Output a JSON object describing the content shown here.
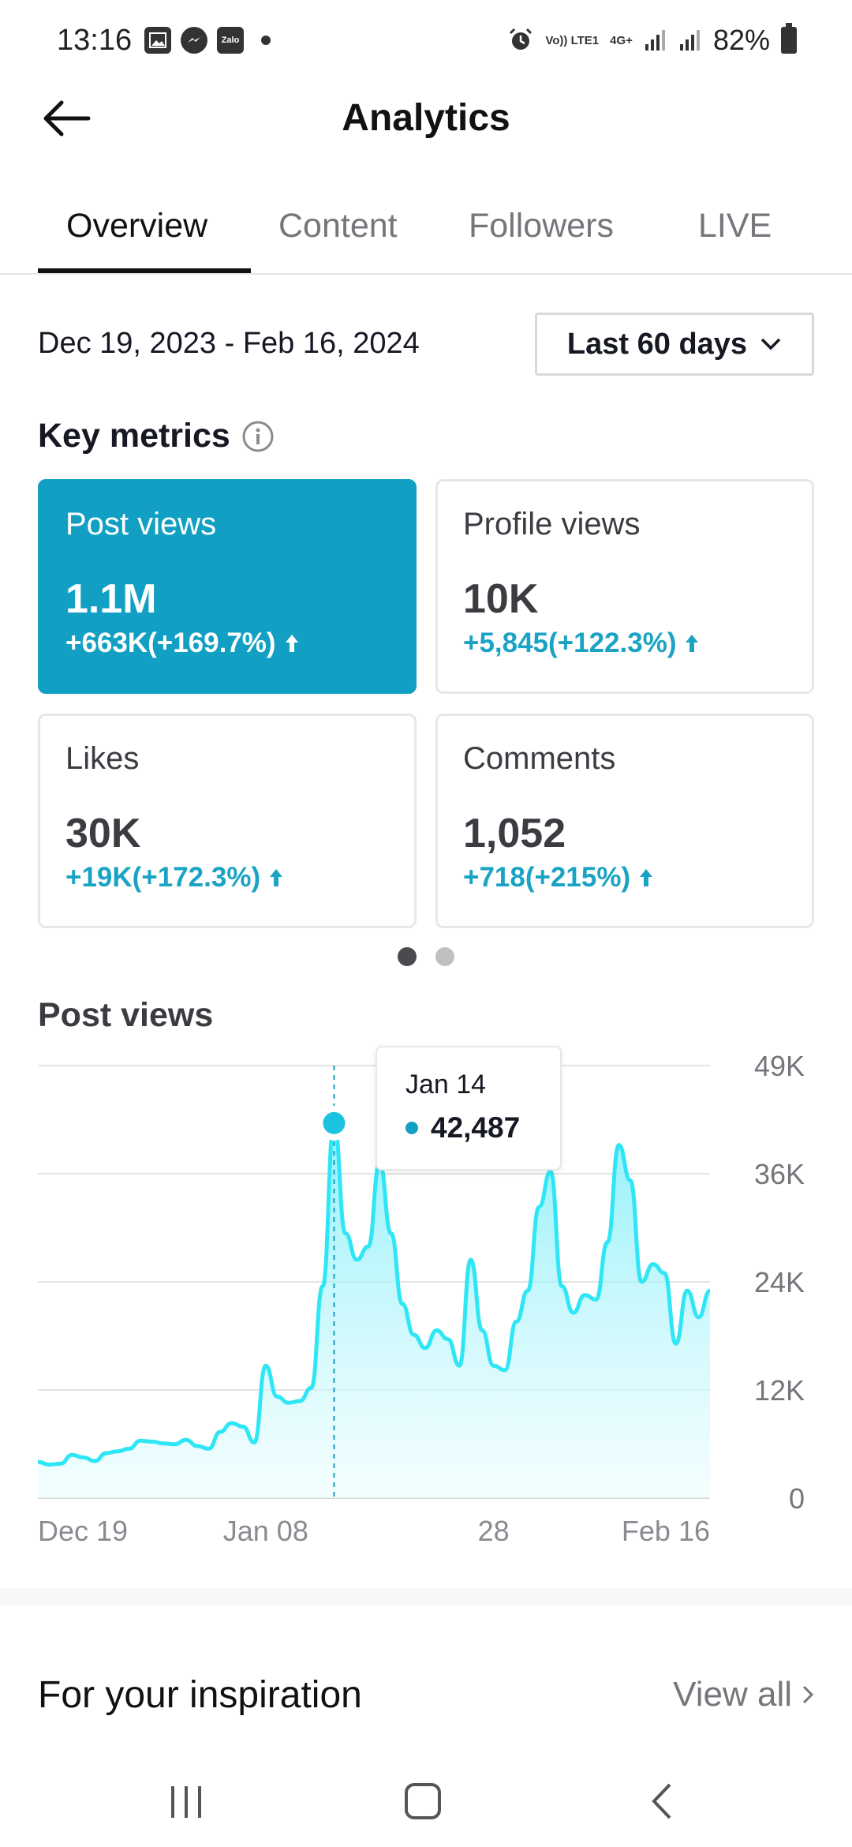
{
  "status_bar": {
    "time": "13:16",
    "battery": "82%",
    "network": "4G+",
    "volte": "Vo)) LTE1",
    "zalo_label": "Zalo"
  },
  "header": {
    "title": "Analytics"
  },
  "tabs": [
    {
      "label": "Overview",
      "active": true
    },
    {
      "label": "Content",
      "active": false
    },
    {
      "label": "Followers",
      "active": false
    },
    {
      "label": "LIVE",
      "active": false
    }
  ],
  "date_range": "Dec 19, 2023 - Feb 16, 2024",
  "period_selector": {
    "label": "Last 60 days"
  },
  "key_metrics": {
    "title": "Key metrics",
    "cards": [
      {
        "label": "Post views",
        "value": "1.1M",
        "delta": "+663K(+169.7%)",
        "selected": true
      },
      {
        "label": "Profile views",
        "value": "10K",
        "delta": "+5,845(+122.3%)",
        "selected": false
      },
      {
        "label": "Likes",
        "value": "30K",
        "delta": "+19K(+172.3%)",
        "selected": false
      },
      {
        "label": "Comments",
        "value": "1,052",
        "delta": "+718(+215%)",
        "selected": false
      }
    ],
    "page_count": 2,
    "current_page": 1
  },
  "chart_section": {
    "title": "Post views"
  },
  "tooltip": {
    "date": "Jan 14",
    "value": "42,487"
  },
  "chart_data": {
    "type": "area",
    "title": "Post views",
    "x_tick_labels": [
      "Dec 19",
      "Jan 08",
      "28",
      "Feb 16"
    ],
    "y_tick_labels": [
      "49K",
      "36K",
      "24K",
      "12K",
      "0"
    ],
    "ylim": [
      0,
      49000
    ],
    "grid": true,
    "color": "#2ee6f5",
    "x": [
      "Dec 19",
      "Dec 20",
      "Dec 21",
      "Dec 22",
      "Dec 23",
      "Dec 24",
      "Dec 25",
      "Dec 26",
      "Dec 27",
      "Dec 28",
      "Dec 29",
      "Dec 30",
      "Dec 31",
      "Jan 01",
      "Jan 02",
      "Jan 03",
      "Jan 04",
      "Jan 05",
      "Jan 06",
      "Jan 07",
      "Jan 08",
      "Jan 09",
      "Jan 10",
      "Jan 11",
      "Jan 12",
      "Jan 13",
      "Jan 14",
      "Jan 15",
      "Jan 16",
      "Jan 17",
      "Jan 18",
      "Jan 19",
      "Jan 20",
      "Jan 21",
      "Jan 22",
      "Jan 23",
      "Jan 24",
      "Jan 25",
      "Jan 26",
      "Jan 27",
      "Jan 28",
      "Jan 29",
      "Jan 30",
      "Jan 31",
      "Feb 01",
      "Feb 02",
      "Feb 03",
      "Feb 04",
      "Feb 05",
      "Feb 06",
      "Feb 07",
      "Feb 08",
      "Feb 09",
      "Feb 10",
      "Feb 11",
      "Feb 12",
      "Feb 13",
      "Feb 14",
      "Feb 15",
      "Feb 16"
    ],
    "values": [
      4100,
      3800,
      3900,
      4900,
      4600,
      4200,
      5100,
      5300,
      5600,
      6500,
      6400,
      6200,
      6100,
      6600,
      5900,
      5600,
      7500,
      8500,
      8100,
      6300,
      15000,
      11500,
      10800,
      11000,
      12500,
      24000,
      42487,
      30000,
      27000,
      28500,
      38000,
      30000,
      22000,
      18500,
      17000,
      19000,
      18000,
      15000,
      27000,
      19000,
      15000,
      14500,
      20000,
      23500,
      33000,
      37000,
      24000,
      21000,
      23000,
      22500,
      29000,
      40000,
      36000,
      24500,
      26500,
      25500,
      17500,
      23500,
      20500,
      23500
    ]
  }
}
